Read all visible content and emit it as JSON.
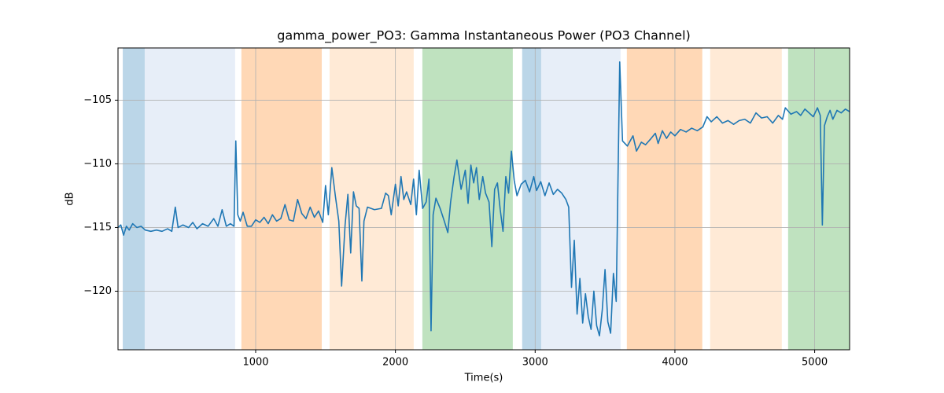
{
  "chart_data": {
    "type": "line",
    "title": "gamma_power_PO3: Gamma Instantaneous Power (PO3 Channel)",
    "x_label": "Time(s)",
    "y_label": "dB",
    "xlim": [
      15,
      5250
    ],
    "ylim": [
      -124.6,
      -100.9
    ],
    "xticks": [
      1000,
      2000,
      3000,
      4000,
      5000
    ],
    "yticks": [
      {
        "value": -120,
        "label": "−120"
      },
      {
        "value": -115,
        "label": "−115"
      },
      {
        "value": -110,
        "label": "−110"
      },
      {
        "value": -105,
        "label": "−105"
      }
    ],
    "grid": true,
    "span_alpha": 0.3,
    "spans": [
      {
        "x0": 49,
        "x1": 206,
        "color": "#1f77b4"
      },
      {
        "x0": 206,
        "x1": 853,
        "color": "#aec7e8"
      },
      {
        "x0": 898,
        "x1": 1473,
        "color": "#ff7f0e"
      },
      {
        "x0": 1529,
        "x1": 2131,
        "color": "#ffbb78"
      },
      {
        "x0": 2193,
        "x1": 2840,
        "color": "#2ca02c"
      },
      {
        "x0": 2907,
        "x1": 3043,
        "color": "#1f77b4"
      },
      {
        "x0": 3043,
        "x1": 3611,
        "color": "#aec7e8"
      },
      {
        "x0": 3656,
        "x1": 4196,
        "color": "#ff7f0e"
      },
      {
        "x0": 4252,
        "x1": 4765,
        "color": "#ffbb78"
      },
      {
        "x0": 4810,
        "x1": 5250,
        "color": "#2ca02c"
      }
    ],
    "x": [
      15,
      35,
      55,
      75,
      95,
      120,
      150,
      180,
      210,
      250,
      290,
      330,
      370,
      400,
      425,
      445,
      480,
      520,
      550,
      580,
      620,
      660,
      700,
      730,
      760,
      790,
      820,
      845,
      858,
      872,
      890,
      910,
      940,
      970,
      1000,
      1030,
      1060,
      1090,
      1120,
      1150,
      1180,
      1210,
      1240,
      1270,
      1300,
      1330,
      1360,
      1390,
      1420,
      1450,
      1480,
      1500,
      1520,
      1545,
      1570,
      1595,
      1615,
      1640,
      1660,
      1680,
      1700,
      1720,
      1740,
      1760,
      1775,
      1800,
      1850,
      1900,
      1930,
      1950,
      1970,
      2000,
      2020,
      2040,
      2060,
      2080,
      2110,
      2130,
      2150,
      2170,
      2195,
      2220,
      2240,
      2255,
      2270,
      2290,
      2320,
      2350,
      2375,
      2395,
      2420,
      2440,
      2470,
      2500,
      2520,
      2540,
      2560,
      2580,
      2600,
      2625,
      2645,
      2670,
      2690,
      2710,
      2730,
      2750,
      2770,
      2790,
      2810,
      2830,
      2850,
      2870,
      2900,
      2930,
      2960,
      2990,
      3010,
      3040,
      3070,
      3100,
      3130,
      3160,
      3190,
      3220,
      3240,
      3260,
      3280,
      3300,
      3320,
      3340,
      3360,
      3380,
      3400,
      3420,
      3440,
      3460,
      3480,
      3500,
      3520,
      3540,
      3560,
      3580,
      3605,
      3625,
      3660,
      3700,
      3725,
      3760,
      3790,
      3830,
      3860,
      3880,
      3910,
      3940,
      3970,
      4000,
      4040,
      4080,
      4120,
      4160,
      4200,
      4230,
      4260,
      4300,
      4340,
      4380,
      4420,
      4460,
      4500,
      4540,
      4580,
      4620,
      4660,
      4700,
      4740,
      4770,
      4790,
      4830,
      4870,
      4900,
      4930,
      4960,
      4990,
      5020,
      5040,
      5055,
      5070,
      5090,
      5110,
      5130,
      5160,
      5190,
      5220,
      5250
    ],
    "series": [
      {
        "color": "#1f77b4",
        "values": [
          -115.0,
          -114.8,
          -115.6,
          -114.9,
          -115.2,
          -114.7,
          -115.0,
          -114.9,
          -115.2,
          -115.3,
          -115.2,
          -115.3,
          -115.1,
          -115.3,
          -113.4,
          -115.0,
          -114.8,
          -115.0,
          -114.6,
          -115.1,
          -114.7,
          -114.9,
          -114.3,
          -114.9,
          -113.6,
          -114.9,
          -114.7,
          -114.9,
          -108.2,
          -114.0,
          -114.5,
          -113.8,
          -114.9,
          -114.9,
          -114.4,
          -114.6,
          -114.2,
          -114.7,
          -114.0,
          -114.5,
          -114.3,
          -113.2,
          -114.4,
          -114.5,
          -112.8,
          -113.9,
          -114.3,
          -113.4,
          -114.2,
          -113.7,
          -114.6,
          -111.7,
          -114.0,
          -110.3,
          -112.5,
          -114.5,
          -119.6,
          -114.8,
          -112.4,
          -117.0,
          -112.2,
          -113.3,
          -113.5,
          -119.2,
          -114.5,
          -113.4,
          -113.6,
          -113.5,
          -112.3,
          -112.5,
          -114.0,
          -111.6,
          -113.3,
          -111.0,
          -112.8,
          -112.2,
          -113.2,
          -111.2,
          -114.0,
          -110.5,
          -113.5,
          -113.0,
          -111.2,
          -123.1,
          -114.0,
          -112.7,
          -113.5,
          -114.5,
          -115.4,
          -113.0,
          -111.0,
          -109.7,
          -112.0,
          -110.5,
          -113.1,
          -110.1,
          -111.5,
          -110.3,
          -112.8,
          -111.0,
          -112.3,
          -113.0,
          -116.5,
          -112.0,
          -111.5,
          -113.6,
          -115.3,
          -111.0,
          -112.3,
          -109.0,
          -111.3,
          -112.5,
          -111.6,
          -111.3,
          -112.2,
          -111.0,
          -112.1,
          -111.4,
          -112.5,
          -111.5,
          -112.4,
          -112.0,
          -112.3,
          -112.8,
          -113.4,
          -119.7,
          -116.0,
          -121.8,
          -119.0,
          -122.5,
          -120.2,
          -122.0,
          -123.0,
          -120.0,
          -122.7,
          -123.5,
          -121.5,
          -118.3,
          -122.4,
          -123.3,
          -118.6,
          -120.8,
          -102.0,
          -108.2,
          -108.6,
          -107.8,
          -109.0,
          -108.3,
          -108.5,
          -108.0,
          -107.6,
          -108.4,
          -107.4,
          -108.0,
          -107.5,
          -107.8,
          -107.3,
          -107.5,
          -107.2,
          -107.4,
          -107.1,
          -106.3,
          -106.7,
          -106.3,
          -106.8,
          -106.6,
          -106.9,
          -106.6,
          -106.5,
          -106.8,
          -106.0,
          -106.4,
          -106.3,
          -106.8,
          -106.2,
          -106.5,
          -105.6,
          -106.1,
          -105.9,
          -106.2,
          -105.7,
          -106.0,
          -106.3,
          -105.6,
          -106.2,
          -114.8,
          -107.0,
          -106.3,
          -105.8,
          -106.5,
          -105.8,
          -106.0,
          -105.7,
          -105.9
        ]
      }
    ]
  }
}
